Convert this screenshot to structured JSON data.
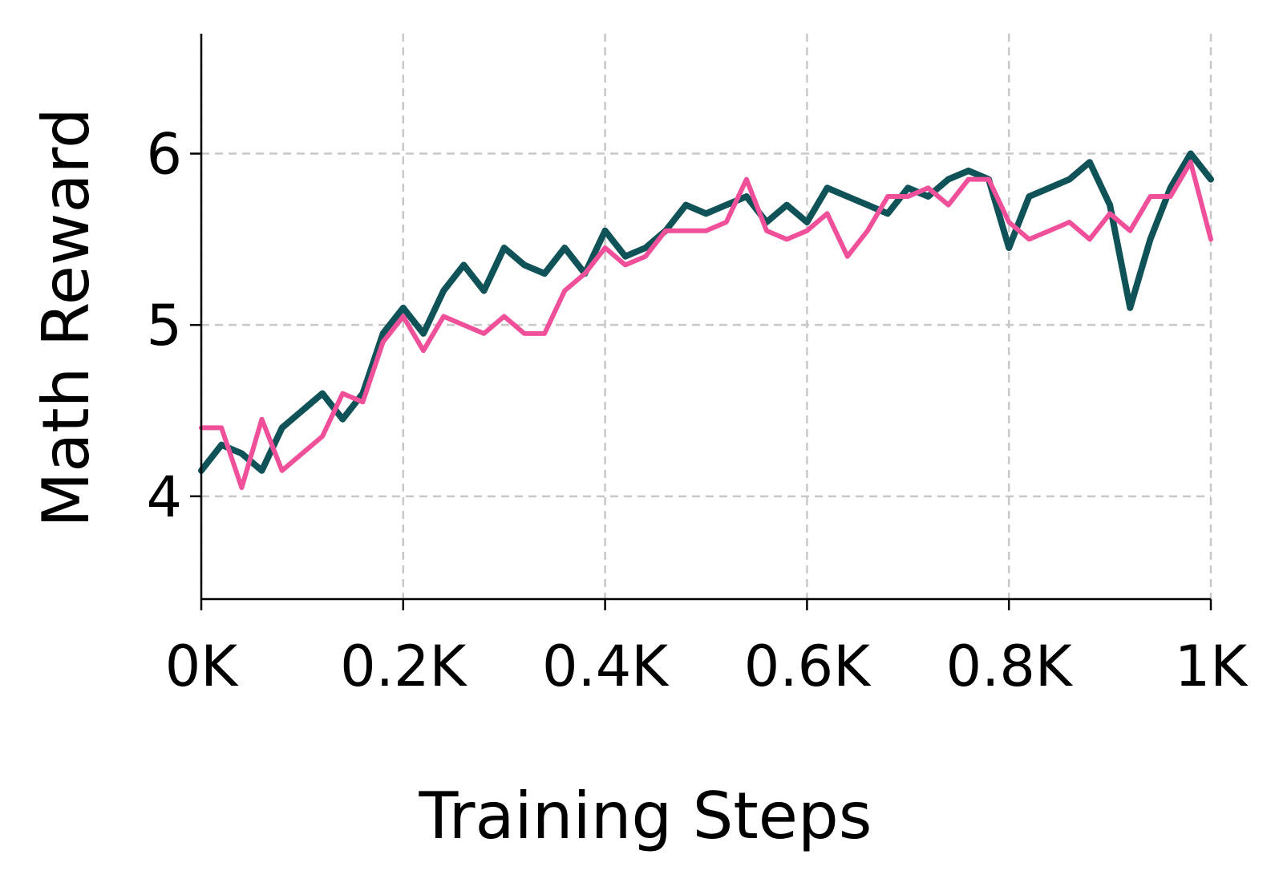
{
  "chart_data": {
    "type": "line",
    "title": "",
    "xlabel": "Training Steps",
    "ylabel": "Math Reward",
    "xlim": [
      0,
      1000
    ],
    "ylim": [
      3.4,
      6.7
    ],
    "xticks": [
      0,
      200,
      400,
      600,
      800,
      1000
    ],
    "xtick_labels": [
      "0K",
      "0.2K",
      "0.4K",
      "0.6K",
      "0.8K",
      "1K"
    ],
    "yticks": [
      4,
      5,
      6
    ],
    "ytick_labels": [
      "4",
      "5",
      "6"
    ],
    "grid": true,
    "legend": "none",
    "x": [
      0,
      20,
      40,
      60,
      80,
      100,
      120,
      140,
      160,
      180,
      200,
      220,
      240,
      260,
      280,
      300,
      320,
      340,
      360,
      380,
      400,
      420,
      440,
      460,
      480,
      500,
      520,
      540,
      560,
      580,
      600,
      620,
      640,
      660,
      680,
      700,
      720,
      740,
      760,
      780,
      800,
      820,
      840,
      860,
      880,
      900,
      920,
      940,
      960,
      980,
      1000
    ],
    "series": [
      {
        "color": "#0f5257",
        "values": [
          4.15,
          4.3,
          4.25,
          4.15,
          4.4,
          4.5,
          4.6,
          4.45,
          4.6,
          4.95,
          5.1,
          4.95,
          5.2,
          5.35,
          5.2,
          5.45,
          5.35,
          5.3,
          5.45,
          5.3,
          5.55,
          5.4,
          5.45,
          5.55,
          5.7,
          5.65,
          5.7,
          5.75,
          5.6,
          5.7,
          5.6,
          5.8,
          5.75,
          5.7,
          5.65,
          5.8,
          5.75,
          5.85,
          5.9,
          5.85,
          5.45,
          5.75,
          5.8,
          5.85,
          5.95,
          5.7,
          5.1,
          5.5,
          5.8,
          6.0,
          5.85
        ]
      },
      {
        "color": "#f0509a",
        "values": [
          4.4,
          4.4,
          4.05,
          4.45,
          4.15,
          4.25,
          4.35,
          4.6,
          4.55,
          4.9,
          5.05,
          4.85,
          5.05,
          5.0,
          4.95,
          5.05,
          4.95,
          4.95,
          5.2,
          5.3,
          5.45,
          5.35,
          5.4,
          5.55,
          5.55,
          5.55,
          5.6,
          5.85,
          5.55,
          5.5,
          5.55,
          5.65,
          5.4,
          5.55,
          5.75,
          5.75,
          5.8,
          5.7,
          5.85,
          5.85,
          5.6,
          5.5,
          5.55,
          5.6,
          5.5,
          5.65,
          5.55,
          5.75,
          5.75,
          5.95,
          5.5
        ]
      }
    ]
  }
}
